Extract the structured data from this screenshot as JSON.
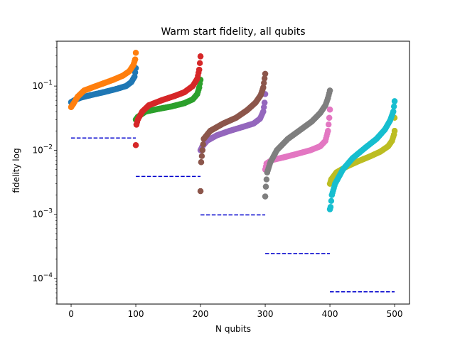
{
  "chart_data": {
    "type": "scatter",
    "title": "Warm start fidelity, all qubits",
    "xlabel": "N qubits",
    "ylabel": "fidelity log",
    "yscale": "log",
    "xlim": [
      -22,
      523
    ],
    "ylim": [
      4e-05,
      0.5
    ],
    "xticks": [
      0,
      100,
      200,
      300,
      400,
      500
    ],
    "yticks": [
      {
        "value": 0.0001,
        "base": "10",
        "exp": "−4"
      },
      {
        "value": 0.001,
        "base": "10",
        "exp": "−3"
      },
      {
        "value": 0.01,
        "base": "10",
        "exp": "−2"
      },
      {
        "value": 0.1,
        "base": "10",
        "exp": "−1"
      }
    ],
    "legend": "none",
    "series": [
      {
        "color": "#1f77b4",
        "x_start": 0,
        "x_end": 100,
        "points": [
          [
            0,
            0.056
          ],
          [
            5,
            0.06
          ],
          [
            15,
            0.066
          ],
          [
            30,
            0.072
          ],
          [
            50,
            0.08
          ],
          [
            70,
            0.09
          ],
          [
            85,
            0.1
          ],
          [
            93,
            0.115
          ],
          [
            98,
            0.14
          ],
          [
            100,
            0.19
          ]
        ]
      },
      {
        "color": "#ff7f0e",
        "x_start": 0,
        "x_end": 100,
        "points": [
          [
            0,
            0.047
          ],
          [
            3,
            0.052
          ],
          [
            10,
            0.068
          ],
          [
            20,
            0.085
          ],
          [
            35,
            0.097
          ],
          [
            50,
            0.11
          ],
          [
            65,
            0.125
          ],
          [
            80,
            0.145
          ],
          [
            90,
            0.17
          ],
          [
            96,
            0.21
          ],
          [
            99,
            0.26
          ],
          [
            100,
            0.33
          ]
        ]
      },
      {
        "color": "#2ca02c",
        "x_start": 100,
        "x_end": 200,
        "points": [
          [
            100,
            0.03
          ],
          [
            103,
            0.033
          ],
          [
            115,
            0.04
          ],
          [
            135,
            0.044
          ],
          [
            155,
            0.048
          ],
          [
            175,
            0.054
          ],
          [
            188,
            0.062
          ],
          [
            195,
            0.075
          ],
          [
            198,
            0.095
          ],
          [
            200,
            0.125
          ]
        ]
      },
      {
        "color": "#d62728",
        "x_start": 100,
        "x_end": 200,
        "points": [
          [
            100,
            0.012
          ],
          [
            101,
            0.025
          ],
          [
            103,
            0.03
          ],
          [
            110,
            0.04
          ],
          [
            120,
            0.05
          ],
          [
            140,
            0.06
          ],
          [
            160,
            0.07
          ],
          [
            175,
            0.08
          ],
          [
            188,
            0.1
          ],
          [
            195,
            0.13
          ],
          [
            198,
            0.18
          ],
          [
            200,
            0.29
          ]
        ]
      },
      {
        "color": "#9467bd",
        "x_start": 200,
        "x_end": 300,
        "points": [
          [
            200,
            0.01
          ],
          [
            203,
            0.0115
          ],
          [
            210,
            0.014
          ],
          [
            225,
            0.017
          ],
          [
            245,
            0.02
          ],
          [
            265,
            0.023
          ],
          [
            282,
            0.026
          ],
          [
            292,
            0.031
          ],
          [
            297,
            0.04
          ],
          [
            299,
            0.055
          ],
          [
            300,
            0.075
          ]
        ]
      },
      {
        "color": "#8c564b",
        "x_start": 200,
        "x_end": 300,
        "points": [
          [
            200,
            0.0023
          ],
          [
            201,
            0.0065
          ],
          [
            203,
            0.01
          ],
          [
            205,
            0.015
          ],
          [
            215,
            0.02
          ],
          [
            235,
            0.026
          ],
          [
            255,
            0.032
          ],
          [
            272,
            0.042
          ],
          [
            285,
            0.055
          ],
          [
            293,
            0.072
          ],
          [
            297,
            0.095
          ],
          [
            300,
            0.155
          ]
        ]
      },
      {
        "color": "#e377c2",
        "x_start": 300,
        "x_end": 400,
        "points": [
          [
            300,
            0.005
          ],
          [
            302,
            0.0062
          ],
          [
            310,
            0.007
          ],
          [
            330,
            0.0078
          ],
          [
            350,
            0.0088
          ],
          [
            370,
            0.01
          ],
          [
            385,
            0.0115
          ],
          [
            393,
            0.014
          ],
          [
            397,
            0.02
          ],
          [
            399,
            0.032
          ],
          [
            400,
            0.043
          ]
        ]
      },
      {
        "color": "#7f7f7f",
        "x_start": 300,
        "x_end": 400,
        "points": [
          [
            300,
            0.0019
          ],
          [
            301,
            0.0027
          ],
          [
            303,
            0.0045
          ],
          [
            308,
            0.0065
          ],
          [
            318,
            0.01
          ],
          [
            335,
            0.015
          ],
          [
            355,
            0.021
          ],
          [
            372,
            0.028
          ],
          [
            385,
            0.038
          ],
          [
            393,
            0.05
          ],
          [
            397,
            0.065
          ],
          [
            400,
            0.085
          ]
        ]
      },
      {
        "color": "#bcbd22",
        "x_start": 400,
        "x_end": 500,
        "points": [
          [
            400,
            0.003
          ],
          [
            402,
            0.0035
          ],
          [
            410,
            0.0045
          ],
          [
            425,
            0.0055
          ],
          [
            445,
            0.0068
          ],
          [
            462,
            0.008
          ],
          [
            478,
            0.0095
          ],
          [
            490,
            0.0115
          ],
          [
            496,
            0.014
          ],
          [
            499,
            0.0175
          ],
          [
            500,
            0.02
          ],
          [
            500,
            0.032
          ]
        ]
      },
      {
        "color": "#17becf",
        "x_start": 400,
        "x_end": 500,
        "points": [
          [
            400,
            0.0012
          ],
          [
            401,
            0.0013
          ],
          [
            403,
            0.002
          ],
          [
            408,
            0.003
          ],
          [
            420,
            0.005
          ],
          [
            435,
            0.0075
          ],
          [
            455,
            0.011
          ],
          [
            472,
            0.015
          ],
          [
            485,
            0.021
          ],
          [
            493,
            0.029
          ],
          [
            498,
            0.04
          ],
          [
            500,
            0.058
          ]
        ]
      }
    ],
    "reference_lines": [
      {
        "color": "#0000cd",
        "style": "dashed",
        "x": [
          0,
          100
        ],
        "y": 0.0155
      },
      {
        "color": "#0000cd",
        "style": "dashed",
        "x": [
          100,
          200
        ],
        "y": 0.0039
      },
      {
        "color": "#0000cd",
        "style": "dashed",
        "x": [
          200,
          300
        ],
        "y": 0.00098
      },
      {
        "color": "#0000cd",
        "style": "dashed",
        "x": [
          300,
          400
        ],
        "y": 0.000245
      },
      {
        "color": "#0000cd",
        "style": "dashed",
        "x": [
          400,
          500
        ],
        "y": 6.2e-05
      }
    ]
  }
}
